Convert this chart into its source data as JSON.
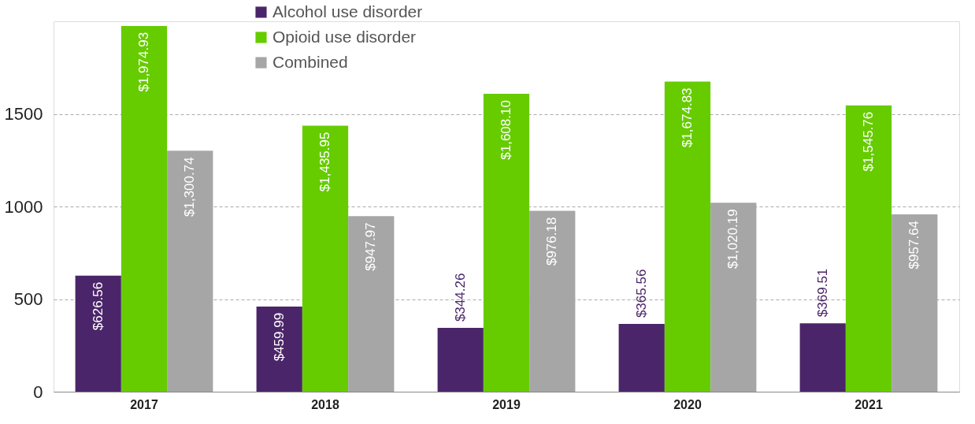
{
  "chart_data": {
    "type": "bar",
    "categories": [
      "2017",
      "2018",
      "2019",
      "2020",
      "2021"
    ],
    "series": [
      {
        "name": "Alcohol use disorder",
        "color": "#4b2569",
        "values": [
          626.56,
          459.99,
          344.26,
          365.56,
          369.51
        ],
        "value_labels": [
          "$626.56",
          "$459.99",
          "$344.26",
          "$365.56",
          "$369.51"
        ]
      },
      {
        "name": "Opioid use disorder",
        "color": "#66cc00",
        "values": [
          1974.93,
          1435.95,
          1608.1,
          1674.83,
          1545.76
        ],
        "value_labels": [
          "$1,974.93",
          "$1,435.95",
          "$1,608.10",
          "$1,674.83",
          "$1,545.76"
        ]
      },
      {
        "name": "Combined",
        "color": "#a6a6a6",
        "values": [
          1300.74,
          947.97,
          976.18,
          1020.19,
          957.64
        ],
        "value_labels": [
          "$1,300.74",
          "$947.97",
          "$976.18",
          "$1,020.19",
          "$957.64"
        ]
      }
    ],
    "ylim": [
      0,
      2000
    ],
    "yticks": [
      0,
      500,
      1000,
      1500
    ],
    "grid": "y",
    "legend": "top"
  }
}
